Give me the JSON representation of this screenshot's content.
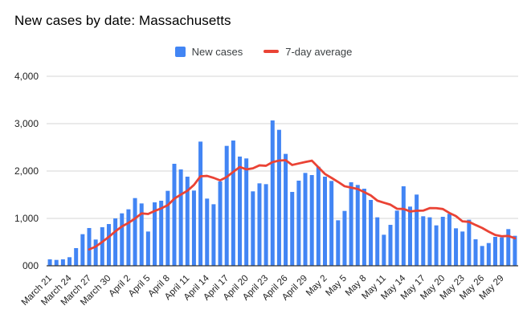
{
  "title": "New cases by date: Massachusetts",
  "legend": [
    {
      "label": "New cases",
      "color": "#4285F4",
      "shape": "square"
    },
    {
      "label": "7-day average",
      "color": "#EA4335",
      "shape": "line"
    }
  ],
  "colors": {
    "bar": "#4285F4",
    "line": "#EA4335",
    "grid": "#d6d6d6",
    "axis": "#333333",
    "tick_text": "#222222"
  },
  "chart_data": {
    "type": "bar",
    "title": "New cases by date: Massachusetts",
    "xlabel": "",
    "ylabel": "",
    "ylim": [
      0,
      4000
    ],
    "grid": true,
    "legend_position": "top",
    "x_tick_every": 3,
    "y_ticks": [
      {
        "value": 4000,
        "label": "4,000"
      },
      {
        "value": 3000,
        "label": "3,000"
      },
      {
        "value": 2000,
        "label": "2,000"
      },
      {
        "value": 1000,
        "label": "1,000"
      },
      {
        "value": 0,
        "label": "000"
      }
    ],
    "x_tick_labels": [
      "March 21",
      "March 24",
      "March 27",
      "March 30",
      "April 2",
      "April 5",
      "April 8",
      "April 11",
      "April 14",
      "April 17",
      "April 20",
      "April 23",
      "April 26",
      "April 29",
      "May 2",
      "May 5",
      "May 8",
      "May 11",
      "May 14",
      "May 17",
      "May 20",
      "May 23",
      "May 26",
      "May 29"
    ],
    "categories": [
      "March 21",
      "March 22",
      "March 23",
      "March 24",
      "March 25",
      "March 26",
      "March 27",
      "March 28",
      "March 29",
      "March 30",
      "March 31",
      "April 1",
      "April 2",
      "April 3",
      "April 4",
      "April 5",
      "April 6",
      "April 7",
      "April 8",
      "April 9",
      "April 10",
      "April 11",
      "April 12",
      "April 13",
      "April 14",
      "April 15",
      "April 16",
      "April 17",
      "April 18",
      "April 19",
      "April 20",
      "April 21",
      "April 22",
      "April 23",
      "April 24",
      "April 25",
      "April 26",
      "April 27",
      "April 28",
      "April 29",
      "April 30",
      "May 1",
      "May 2",
      "May 3",
      "May 4",
      "May 5",
      "May 6",
      "May 7",
      "May 8",
      "May 9",
      "May 10",
      "May 11",
      "May 12",
      "May 13",
      "May 14",
      "May 15",
      "May 16",
      "May 17",
      "May 18",
      "May 19",
      "May 20",
      "May 21",
      "May 22",
      "May 23",
      "May 24",
      "May 25",
      "May 26",
      "May 27",
      "May 28",
      "May 29",
      "May 30",
      "May 31"
    ],
    "series": [
      {
        "name": "New cases",
        "type": "bar",
        "color": "#4285F4",
        "values": [
          136,
          124,
          136,
          181,
          373,
          667,
          797,
          554,
          814,
          881,
          1000,
          1107,
          1192,
          1429,
          1316,
          723,
          1339,
          1373,
          1582,
          2153,
          2034,
          1881,
          1588,
          2621,
          1418,
          1299,
          1780,
          2531,
          2644,
          2305,
          2266,
          1571,
          1740,
          1723,
          3068,
          2870,
          2362,
          1559,
          1797,
          1960,
          1915,
          2090,
          1881,
          1791,
          960,
          1158,
          1763,
          1706,
          1627,
          1390,
          1023,
          655,
          864,
          1164,
          1678,
          1249,
          1503,
          1045,
          1023,
          853,
          1034,
          1096,
          791,
          723,
          972,
          559,
          418,
          480,
          610,
          599,
          774,
          633
        ]
      },
      {
        "name": "7-day average",
        "type": "line",
        "color": "#EA4335",
        "start_index": 6,
        "values": [
          345,
          405,
          503,
          610,
          727,
          831,
          906,
          997,
          1106,
          1093,
          1158,
          1211,
          1279,
          1416,
          1503,
          1584,
          1707,
          1890,
          1897,
          1856,
          1803,
          1874,
          1983,
          2085,
          2035,
          2057,
          2120,
          2111,
          2188,
          2220,
          2229,
          2128,
          2160,
          2191,
          2219,
          2079,
          1938,
          1856,
          1771,
          1679,
          1651,
          1621,
          1555,
          1485,
          1375,
          1332,
          1290,
          1204,
          1200,
          1146,
          1162,
          1165,
          1218,
          1216,
          1198,
          1115,
          1049,
          938,
          927,
          861,
          799,
          720,
          650,
          623,
          630,
          582
        ]
      }
    ]
  }
}
